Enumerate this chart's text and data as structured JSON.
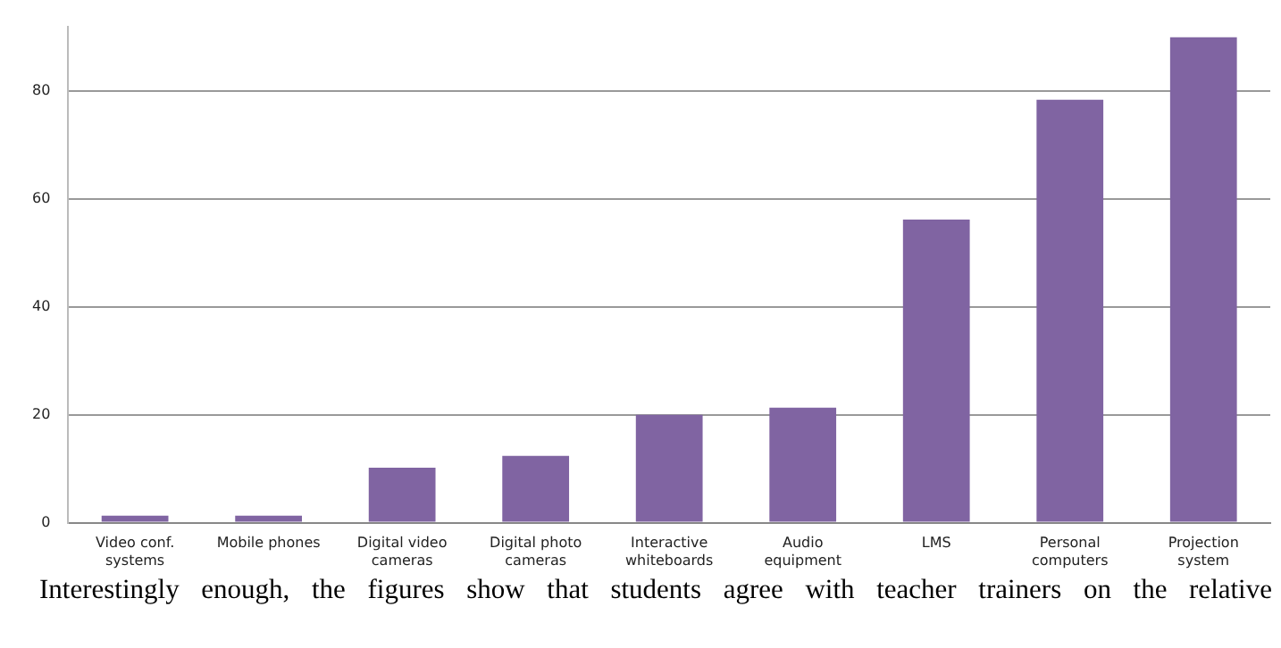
{
  "chart_data": {
    "type": "bar",
    "categories": [
      "Video conf. systems",
      "Mobile phones",
      "Digital video cameras",
      "Digital photo cameras",
      "Interactive whiteboards",
      "Audio equipment",
      "LMS",
      "Personal computers",
      "Projection system"
    ],
    "values": [
      1.3,
      1.3,
      10.2,
      12.4,
      20,
      21.3,
      56.2,
      78.4,
      90
    ],
    "color": "#8064a2",
    "ylim": [
      0,
      92
    ],
    "yticks": [
      0,
      20,
      40,
      60,
      80
    ],
    "grid": "y",
    "legend": false,
    "annotations": [
      "Interestingly enough, the figures show that students agree with teacher trainers on the relative"
    ]
  }
}
